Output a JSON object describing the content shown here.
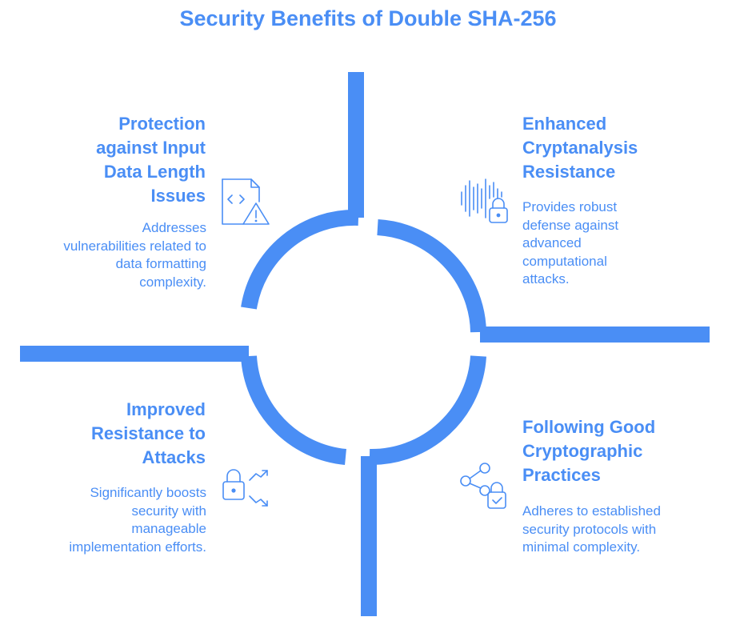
{
  "title": "Security Benefits of Double SHA-256",
  "colors": {
    "accent": "#4a8ef5",
    "background": "#ffffff"
  },
  "quadrants": {
    "top_left": {
      "heading": "Protection against Input Data Length Issues",
      "description": "Addresses vulnerabilities related to data formatting complexity.",
      "icon": "code-file-warning-icon"
    },
    "top_right": {
      "heading": "Enhanced Cryptanalysis Resistance",
      "description": "Provides robust defense against advanced computational attacks.",
      "icon": "soundwave-lock-icon"
    },
    "bottom_left": {
      "heading": "Improved Resistance to Attacks",
      "description": "Significantly boosts security with manageable implementation efforts.",
      "icon": "lock-arrows-icon"
    },
    "bottom_right": {
      "heading": "Following Good Cryptographic Practices",
      "description": "Adheres to established security protocols with minimal complexity.",
      "icon": "share-lock-check-icon"
    }
  }
}
